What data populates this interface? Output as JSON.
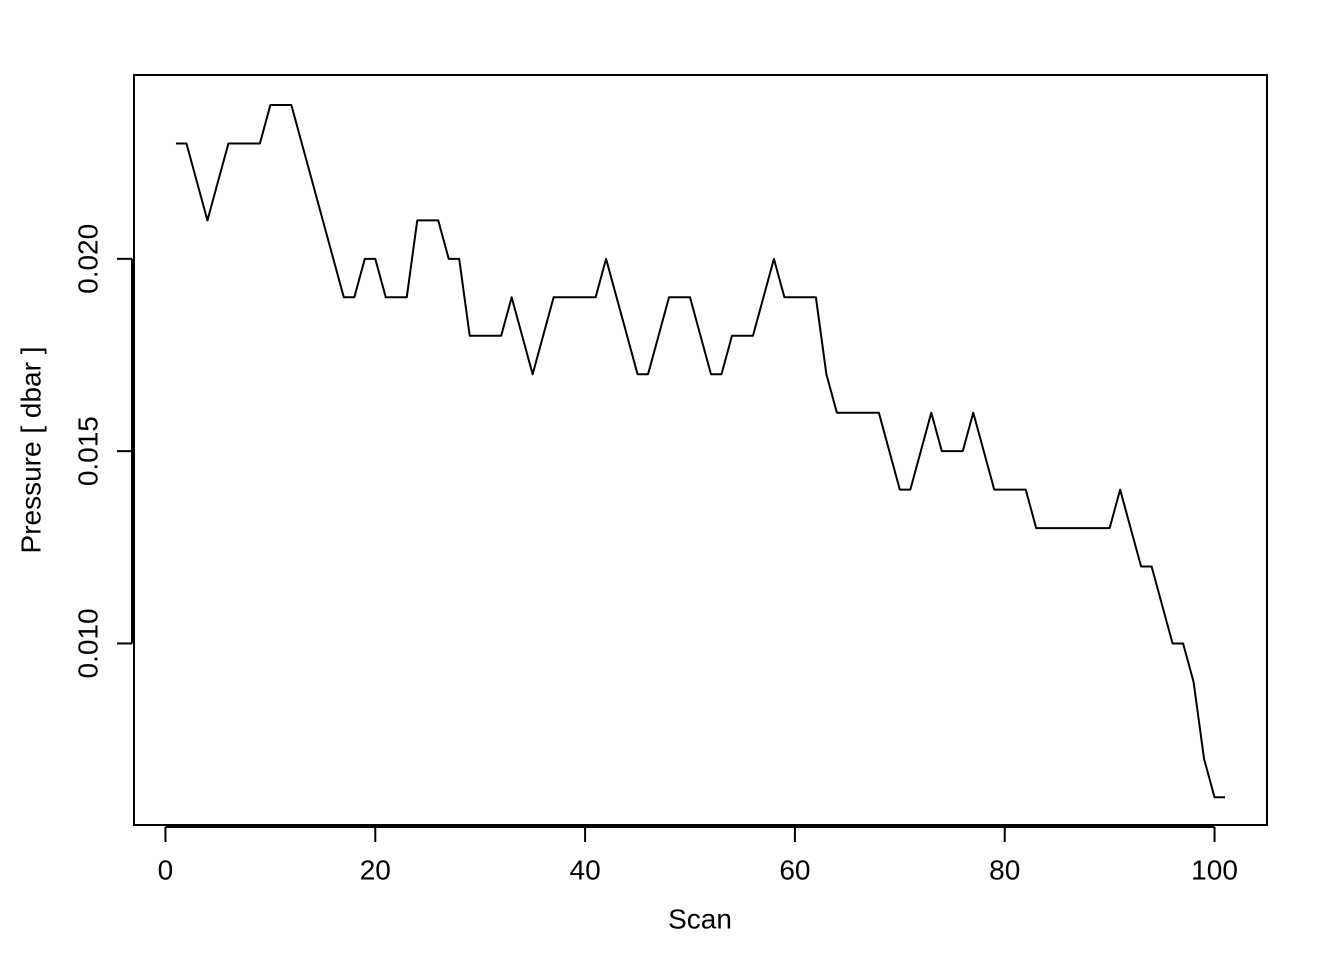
{
  "chart_data": {
    "type": "line",
    "xlabel": "Scan",
    "ylabel": "Pressure [ dbar ]",
    "x": [
      1,
      2,
      3,
      4,
      5,
      6,
      7,
      8,
      9,
      10,
      11,
      12,
      13,
      14,
      15,
      16,
      17,
      18,
      19,
      20,
      21,
      22,
      23,
      24,
      25,
      26,
      27,
      28,
      29,
      30,
      31,
      32,
      33,
      34,
      35,
      36,
      37,
      38,
      39,
      40,
      41,
      42,
      43,
      44,
      45,
      46,
      47,
      48,
      49,
      50,
      51,
      52,
      53,
      54,
      55,
      56,
      57,
      58,
      59,
      60,
      61,
      62,
      63,
      64,
      65,
      66,
      67,
      68,
      69,
      70,
      71,
      72,
      73,
      74,
      75,
      76,
      77,
      78,
      79,
      80,
      81,
      82,
      83,
      84,
      85,
      86,
      87,
      88,
      89,
      90,
      91,
      92,
      93,
      94,
      95,
      96,
      97,
      98,
      99,
      100,
      101
    ],
    "values": [
      0.023,
      0.023,
      0.022,
      0.021,
      0.022,
      0.023,
      0.023,
      0.023,
      0.023,
      0.024,
      0.024,
      0.024,
      0.023,
      0.022,
      0.021,
      0.02,
      0.019,
      0.019,
      0.02,
      0.02,
      0.019,
      0.019,
      0.019,
      0.021,
      0.021,
      0.021,
      0.02,
      0.02,
      0.018,
      0.018,
      0.018,
      0.018,
      0.019,
      0.018,
      0.017,
      0.018,
      0.019,
      0.019,
      0.019,
      0.019,
      0.019,
      0.02,
      0.019,
      0.018,
      0.017,
      0.017,
      0.018,
      0.019,
      0.019,
      0.019,
      0.018,
      0.017,
      0.017,
      0.018,
      0.018,
      0.018,
      0.019,
      0.02,
      0.019,
      0.019,
      0.019,
      0.019,
      0.017,
      0.016,
      0.016,
      0.016,
      0.016,
      0.016,
      0.015,
      0.014,
      0.014,
      0.015,
      0.016,
      0.015,
      0.015,
      0.015,
      0.016,
      0.015,
      0.014,
      0.014,
      0.014,
      0.014,
      0.013,
      0.013,
      0.013,
      0.013,
      0.013,
      0.013,
      0.013,
      0.013,
      0.014,
      0.013,
      0.012,
      0.012,
      0.011,
      0.01,
      0.01,
      0.009,
      0.007,
      0.006,
      0.006
    ],
    "color": "#000000",
    "xlim": [
      -3,
      105
    ],
    "xticks": [
      0,
      20,
      40,
      60,
      80,
      100
    ],
    "ylim": [
      0.00528,
      0.02478
    ],
    "yticks": [
      {
        "value": 0.01,
        "label": "0.010"
      },
      0.015,
      {
        "value": 0.02,
        "label": "0.020"
      }
    ],
    "grid": false
  }
}
